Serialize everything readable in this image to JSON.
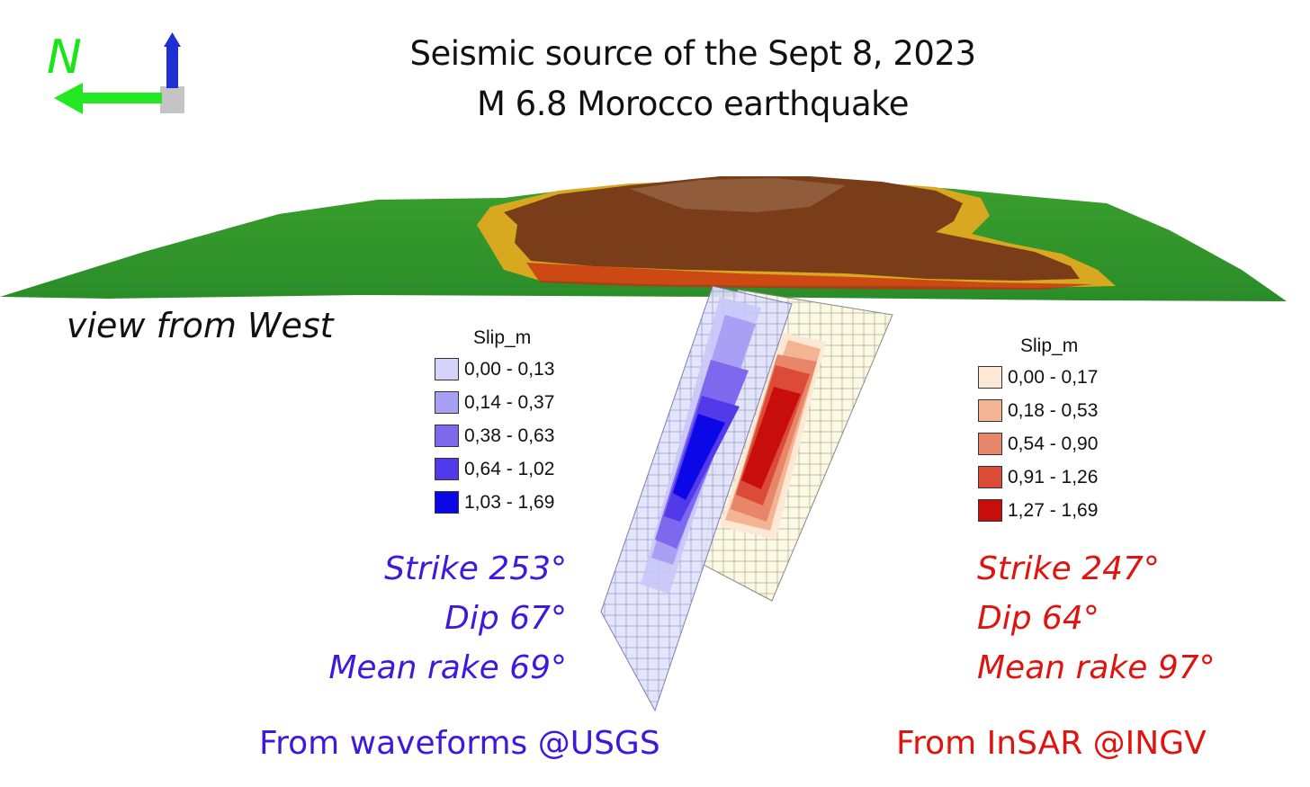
{
  "title": {
    "line1": "Seismic source of the Sept 8, 2023",
    "line2": "M 6.8 Morocco earthquake"
  },
  "compass": {
    "north_label": "N",
    "icon": "compass-axes-icon"
  },
  "view_label": "view from West",
  "usgs": {
    "legend_title": "Slip_m",
    "legend": [
      {
        "label": "0,00 - 0,13",
        "color": "#d4d4fb"
      },
      {
        "label": "0,14 - 0,37",
        "color": "#a99ff4"
      },
      {
        "label": "0,38 - 0,63",
        "color": "#7d68ee"
      },
      {
        "label": "0,64 - 1,02",
        "color": "#5239ea"
      },
      {
        "label": "1,03 - 1,69",
        "color": "#0c07e6"
      }
    ],
    "strike": "Strike 253°",
    "dip": "Dip 67°",
    "rake": "Mean rake 69°",
    "source": "From waveforms @USGS",
    "color": "#3d19e0"
  },
  "ingv": {
    "legend_title": "Slip_m",
    "legend": [
      {
        "label": "0,00 - 0,17",
        "color": "#fde8d6"
      },
      {
        "label": "0,18 - 0,53",
        "color": "#f2b493"
      },
      {
        "label": "0,54 - 0,90",
        "color": "#e8866a"
      },
      {
        "label": "0,91 - 1,26",
        "color": "#dc4a38"
      },
      {
        "label": "1,27 - 1,69",
        "color": "#c80d0d"
      }
    ],
    "strike": "Strike 247°",
    "dip": "Dip 64°",
    "rake": "Mean rake 97°",
    "source": "From InSAR @INGV",
    "color": "#e0140e"
  },
  "terrain_colors": {
    "lowland": "#2f9a2a",
    "midland": "#d4b21a",
    "highland": "#7a3d1a"
  }
}
